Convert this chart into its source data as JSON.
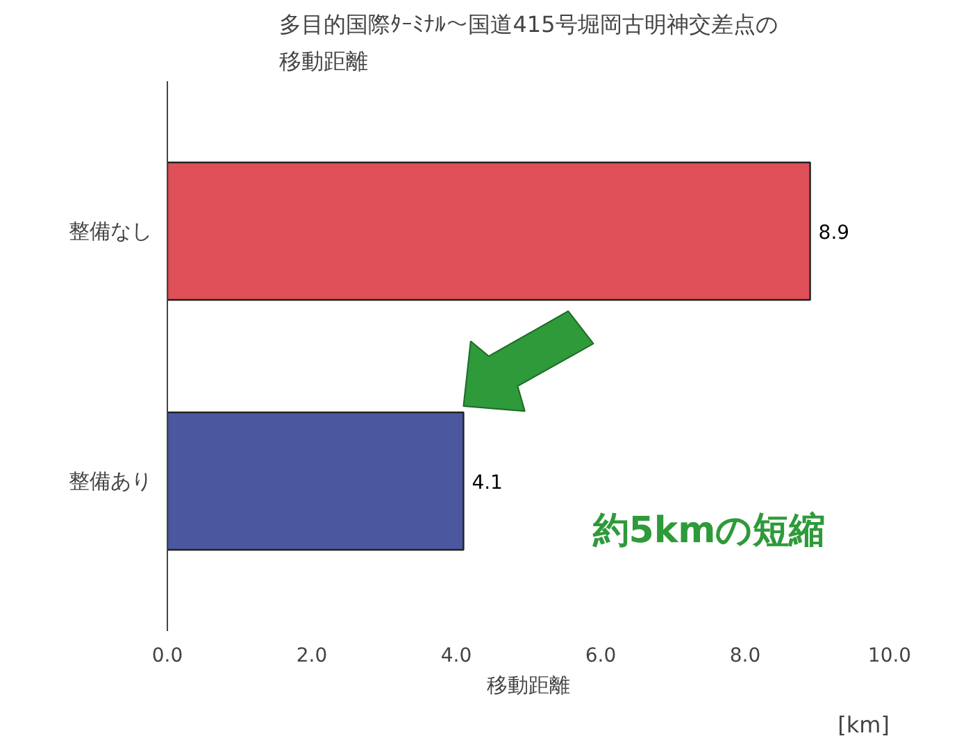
{
  "chart_data": {
    "type": "bar",
    "orientation": "horizontal",
    "title": "多目的国際ﾀｰﾐﾅﾙ～国道415号堀岡古明神交差点の移動距離",
    "categories": [
      "整備なし",
      "整備あり"
    ],
    "values": [
      8.9,
      4.1
    ],
    "colors": [
      "#d8303a",
      "#2c3a8e"
    ],
    "xlim": [
      0,
      10
    ],
    "xticks": [
      {
        "value": 0,
        "label": "0.0"
      },
      {
        "value": 2,
        "label": "2.0"
      },
      {
        "value": 4,
        "label": "4.0"
      },
      {
        "value": 6,
        "label": "6.0"
      },
      {
        "value": 8,
        "label": "8.0"
      },
      {
        "value": 10,
        "label": "10.0"
      }
    ],
    "xlabel": "移動距離",
    "data_labels": true,
    "grid": false,
    "annotations": [
      "[km]",
      "約5kmの短縮"
    ]
  }
}
